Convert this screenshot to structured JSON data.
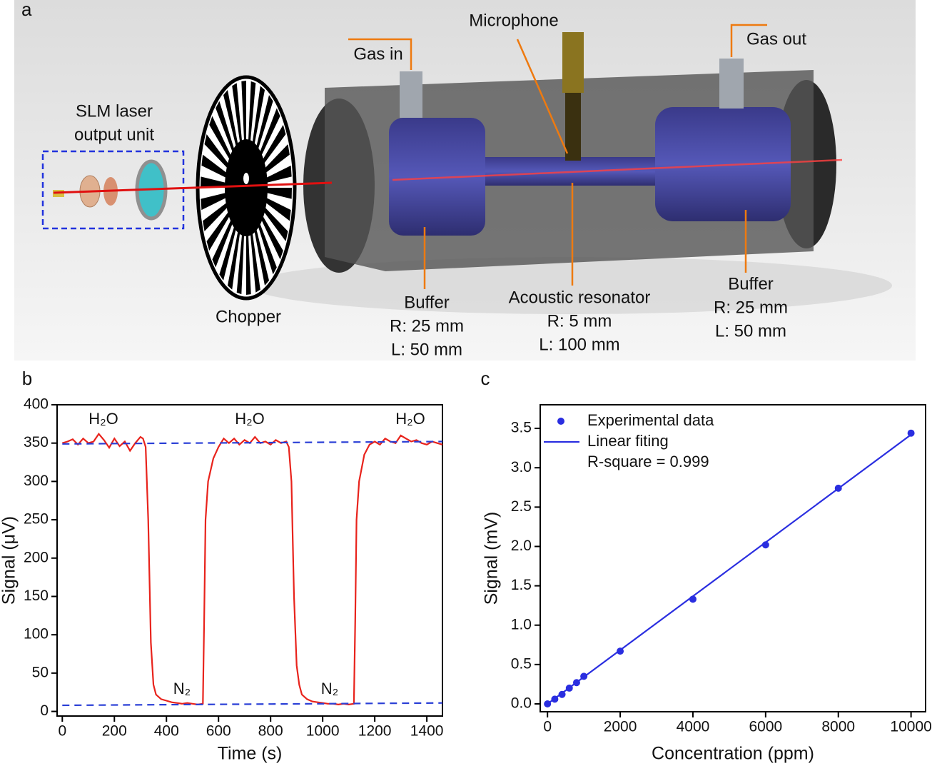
{
  "diagram": {
    "panel_label": "a",
    "labels": [
      {
        "lines": [
          "SLM laser",
          "output unit"
        ]
      },
      {
        "lines": [
          "Chopper"
        ]
      },
      {
        "lines": [
          "Gas in"
        ]
      },
      {
        "lines": [
          "Microphone"
        ]
      },
      {
        "lines": [
          "Gas out"
        ]
      },
      {
        "lines": [
          "Buffer",
          "R: 25 mm",
          "L: 50 mm"
        ]
      },
      {
        "lines": [
          "Acoustic resonator",
          "R: 5 mm",
          "L: 100 mm"
        ]
      },
      {
        "lines": [
          "Buffer",
          "R: 25 mm",
          "L: 50 mm"
        ]
      }
    ]
  },
  "chart_data": [
    {
      "type": "diagram-placeholder"
    },
    {
      "type": "line",
      "panel_label": "b",
      "x_label": "Time (s)",
      "y_label": "Signal (μV)",
      "xlim": [
        -20,
        1460
      ],
      "ylim": [
        -6,
        400
      ],
      "xticks": [
        0,
        200,
        400,
        600,
        800,
        1000,
        1200,
        1400
      ],
      "yticks": [
        0,
        50,
        100,
        150,
        200,
        250,
        300,
        350,
        400
      ],
      "annotations": [
        "H₂O",
        "H₂O",
        "H₂O",
        "N₂",
        "N₂"
      ],
      "series": [
        {
          "color": "#e8231c",
          "dash": false,
          "x": [
            0,
            20,
            40,
            60,
            80,
            100,
            120,
            140,
            160,
            180,
            200,
            220,
            240,
            260,
            280,
            300,
            310,
            320,
            330,
            340,
            350,
            360,
            380,
            400,
            420,
            440,
            460,
            480,
            500,
            520,
            540,
            545,
            550,
            560,
            580,
            600,
            620,
            640,
            660,
            680,
            700,
            720,
            740,
            760,
            780,
            800,
            820,
            840,
            860,
            870,
            880,
            890,
            900,
            910,
            920,
            940,
            960,
            980,
            1000,
            1020,
            1040,
            1060,
            1080,
            1100,
            1120,
            1125,
            1130,
            1140,
            1160,
            1180,
            1200,
            1220,
            1240,
            1260,
            1280,
            1300,
            1320,
            1340,
            1360,
            1380,
            1400,
            1420,
            1440,
            1460
          ],
          "values": [
            350,
            352,
            355,
            348,
            356,
            350,
            352,
            362,
            354,
            344,
            356,
            346,
            352,
            340,
            350,
            358,
            356,
            345,
            250,
            90,
            35,
            22,
            16,
            14,
            12,
            11,
            10,
            11,
            10,
            9,
            10,
            120,
            250,
            300,
            330,
            345,
            356,
            350,
            356,
            348,
            354,
            350,
            358,
            350,
            352,
            348,
            354,
            350,
            352,
            345,
            300,
            150,
            60,
            35,
            22,
            16,
            13,
            12,
            11,
            10,
            10,
            9,
            10,
            9,
            10,
            120,
            250,
            300,
            335,
            348,
            352,
            348,
            356,
            352,
            350,
            360,
            356,
            352,
            354,
            350,
            348,
            352,
            350,
            348
          ]
        },
        {
          "color": "#2a3fd6",
          "dash": true,
          "x": [
            0,
            1460
          ],
          "values": [
            349,
            352
          ]
        },
        {
          "color": "#2a3fd6",
          "dash": true,
          "x": [
            0,
            1460
          ],
          "values": [
            8,
            11
          ]
        }
      ]
    },
    {
      "type": "scatter",
      "panel_label": "c",
      "x_label": "Concentration (ppm)",
      "y_label": "Signal (mV)",
      "xlim": [
        -200,
        10400
      ],
      "ylim": [
        -0.1,
        3.8
      ],
      "xticks": [
        0,
        2000,
        4000,
        6000,
        8000,
        10000
      ],
      "yticks": [
        {
          "value": 0,
          "label": "0.0"
        },
        0.5,
        {
          "value": 1,
          "label": "1.0"
        },
        1.5,
        {
          "value": 2,
          "label": "2.0"
        },
        2.5,
        {
          "value": 3,
          "label": "3.0"
        },
        3.5
      ],
      "annotation": "R-square = 0.999",
      "series": [
        {
          "name": "Experimental data",
          "color": "#2a2ee0",
          "kind": "points",
          "x": [
            0,
            200,
            400,
            600,
            800,
            1000,
            2000,
            4000,
            6000,
            8000,
            10000
          ],
          "values": [
            0.0,
            0.06,
            0.12,
            0.2,
            0.27,
            0.35,
            0.67,
            1.33,
            2.02,
            2.74,
            3.44
          ]
        },
        {
          "name": "Linear fiting",
          "color": "#2a2ee0",
          "kind": "line",
          "x": [
            0,
            10000
          ],
          "values": [
            0.0,
            3.42
          ]
        }
      ]
    }
  ]
}
